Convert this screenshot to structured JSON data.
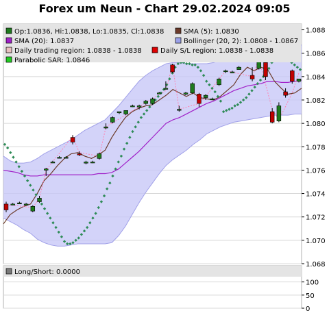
{
  "title": "Forex um Neun - Chart 29.02.2024 09:05",
  "colors": {
    "band_fill": "#c8c8f8",
    "band_line": "#a0a0e8",
    "sma5": "#6b3a2a",
    "sma20": "#a020c8",
    "sar": "#2e8b57",
    "up_candle": "#1e7a1e",
    "down_candle": "#c00000",
    "trade_line": "#ff80b0",
    "legend_bg": "#e4e4e4"
  },
  "legend": [
    {
      "label": "Op:1.0836, Hi:1.0838, Lo:1.0835, Cl:1.0838",
      "color": "#1e7a1e"
    },
    {
      "label": "SMA (5): 1.0830",
      "color": "#6b3a2a"
    },
    {
      "label": "SMA (20): 1.0837",
      "color": "#a020c8"
    },
    {
      "label": "Bollinger (20, 2): 1.0808 - 1.0867",
      "color": "#9aa0e8"
    },
    {
      "label": "Daily trading region: 1.0838 - 1.0838",
      "color": "#e8c0c0"
    },
    {
      "label": "Daily S/L region: 1.0838 - 1.0838",
      "color": "#e00000"
    },
    {
      "label": "Parabolic SAR: 1.0846",
      "color": "#22cc22"
    }
  ],
  "sub_legend": {
    "label": "Long/Short: 0.0000",
    "color": "#7a7a7a"
  },
  "chart_data": [
    {
      "type": "candlestick",
      "title": "Forex um Neun - Chart 29.02.2024 09:05",
      "ylim": [
        1.068,
        1.0885
      ],
      "y_ticks": [
        "1.068",
        "1.070",
        "1.072",
        "1.074",
        "1.076",
        "1.078",
        "1.080",
        "1.082",
        "1.084",
        "1.086",
        "1.088"
      ],
      "candles": [
        {
          "o": 1.0731,
          "h": 1.0733,
          "l": 1.0724,
          "c": 1.0726
        },
        {
          "o": 1.0731,
          "h": 1.0732,
          "l": 1.0731,
          "c": 1.0731
        },
        {
          "o": 1.0732,
          "h": 1.0733,
          "l": 1.0732,
          "c": 1.0732
        },
        {
          "o": 1.0731,
          "h": 1.0732,
          "l": 1.0731,
          "c": 1.0731
        },
        {
          "o": 1.0725,
          "h": 1.073,
          "l": 1.0724,
          "c": 1.0729
        },
        {
          "o": 1.0733,
          "h": 1.0738,
          "l": 1.0732,
          "c": 1.0736
        },
        {
          "o": 1.076,
          "h": 1.0762,
          "l": 1.0755,
          "c": 1.0761
        },
        {
          "o": 1.0767,
          "h": 1.0768,
          "l": 1.0766,
          "c": 1.0767
        },
        {
          "o": 1.0771,
          "h": 1.0772,
          "l": 1.077,
          "c": 1.0771
        },
        {
          "o": 1.0771,
          "h": 1.0772,
          "l": 1.0771,
          "c": 1.0771
        },
        {
          "o": 1.0788,
          "h": 1.079,
          "l": 1.0782,
          "c": 1.0784
        },
        {
          "o": 1.0774,
          "h": 1.0776,
          "l": 1.0772,
          "c": 1.0773
        },
        {
          "o": 1.0766,
          "h": 1.0768,
          "l": 1.0765,
          "c": 1.0767
        },
        {
          "o": 1.0767,
          "h": 1.0768,
          "l": 1.0766,
          "c": 1.0767
        },
        {
          "o": 1.077,
          "h": 1.0775,
          "l": 1.0769,
          "c": 1.0774
        },
        {
          "o": 1.0796,
          "h": 1.08,
          "l": 1.0795,
          "c": 1.0797
        },
        {
          "o": 1.0801,
          "h": 1.0806,
          "l": 1.08,
          "c": 1.0805
        },
        {
          "o": 1.0809,
          "h": 1.081,
          "l": 1.0808,
          "c": 1.081
        },
        {
          "o": 1.0808,
          "h": 1.0811,
          "l": 1.0807,
          "c": 1.0811
        },
        {
          "o": 1.0815,
          "h": 1.0816,
          "l": 1.0814,
          "c": 1.0815
        },
        {
          "o": 1.0814,
          "h": 1.0816,
          "l": 1.0812,
          "c": 1.0815
        },
        {
          "o": 1.0817,
          "h": 1.082,
          "l": 1.0816,
          "c": 1.0819
        },
        {
          "o": 1.0817,
          "h": 1.0822,
          "l": 1.0816,
          "c": 1.0821
        },
        {
          "o": 1.0826,
          "h": 1.0827,
          "l": 1.0825,
          "c": 1.0826
        },
        {
          "o": 1.083,
          "h": 1.0836,
          "l": 1.0829,
          "c": 1.083
        },
        {
          "o": 1.085,
          "h": 1.0851,
          "l": 1.0843,
          "c": 1.0844
        },
        {
          "o": 1.0812,
          "h": 1.0815,
          "l": 1.081,
          "c": 1.0812
        },
        {
          "o": 1.0825,
          "h": 1.0827,
          "l": 1.0824,
          "c": 1.0826
        },
        {
          "o": 1.0826,
          "h": 1.0835,
          "l": 1.0825,
          "c": 1.0834
        },
        {
          "o": 1.0825,
          "h": 1.0826,
          "l": 1.0814,
          "c": 1.0817
        },
        {
          "o": 1.0822,
          "h": 1.0825,
          "l": 1.082,
          "c": 1.0824
        },
        {
          "o": 1.0821,
          "h": 1.0822,
          "l": 1.082,
          "c": 1.0821
        },
        {
          "o": 1.0833,
          "h": 1.0839,
          "l": 1.0832,
          "c": 1.0838
        },
        {
          "o": 1.0845,
          "h": 1.0846,
          "l": 1.0843,
          "c": 1.0845
        },
        {
          "o": 1.0844,
          "h": 1.0845,
          "l": 1.0843,
          "c": 1.0844
        },
        {
          "o": 1.0846,
          "h": 1.0849,
          "l": 1.0846,
          "c": 1.0848
        },
        {
          "o": 1.0854,
          "h": 1.0856,
          "l": 1.0853,
          "c": 1.0855
        },
        {
          "o": 1.0841,
          "h": 1.0848,
          "l": 1.0836,
          "c": 1.0838
        },
        {
          "o": 1.0847,
          "h": 1.0856,
          "l": 1.0846,
          "c": 1.0854
        },
        {
          "o": 1.0852,
          "h": 1.0853,
          "l": 1.0837,
          "c": 1.084
        },
        {
          "o": 1.081,
          "h": 1.0813,
          "l": 1.08,
          "c": 1.0801
        },
        {
          "o": 1.0802,
          "h": 1.0818,
          "l": 1.0801,
          "c": 1.0815
        },
        {
          "o": 1.0827,
          "h": 1.083,
          "l": 1.0822,
          "c": 1.0824
        },
        {
          "o": 1.0845,
          "h": 1.0846,
          "l": 1.0834,
          "c": 1.0836
        },
        {
          "o": 1.0836,
          "h": 1.0838,
          "l": 1.0835,
          "c": 1.0838
        }
      ],
      "sma5": [
        1.0714,
        1.0722,
        1.0726,
        1.0729,
        1.0731,
        1.074,
        1.0751,
        1.0757,
        1.0764,
        1.077,
        1.0774,
        1.0775,
        1.0772,
        1.077,
        1.0773,
        1.0777,
        1.0788,
        1.0797,
        1.0805,
        1.081,
        1.0813,
        1.0815,
        1.0816,
        1.082,
        1.0824,
        1.0829,
        1.0826,
        1.0823,
        1.0826,
        1.0822,
        1.0821,
        1.082,
        1.0823,
        1.0828,
        1.0833,
        1.0842,
        1.0848,
        1.0845,
        1.0848,
        1.0846,
        1.0836,
        1.083,
        1.0825,
        1.0826,
        1.083
      ],
      "sma20": [
        1.076,
        1.0759,
        1.0758,
        1.0756,
        1.0755,
        1.0755,
        1.0756,
        1.0756,
        1.0756,
        1.0756,
        1.0756,
        1.0756,
        1.0756,
        1.0756,
        1.0757,
        1.0757,
        1.0758,
        1.0761,
        1.0766,
        1.0771,
        1.0776,
        1.0782,
        1.0788,
        1.0794,
        1.08,
        1.0803,
        1.0805,
        1.0808,
        1.0811,
        1.0814,
        1.0817,
        1.0819,
        1.0822,
        1.0825,
        1.0828,
        1.083,
        1.0832,
        1.0833,
        1.0834,
        1.0836,
        1.0836,
        1.0835,
        1.0835,
        1.0836,
        1.0837
      ],
      "bollinger_upper": [
        1.0772,
        1.0768,
        1.0766,
        1.0766,
        1.0767,
        1.077,
        1.0774,
        1.0777,
        1.078,
        1.0783,
        1.0786,
        1.079,
        1.0794,
        1.0797,
        1.08,
        1.0803,
        1.0809,
        1.0815,
        1.0822,
        1.0829,
        1.0836,
        1.0841,
        1.0845,
        1.0848,
        1.0851,
        1.0852,
        1.0852,
        1.0851,
        1.0851,
        1.0851,
        1.0851,
        1.0852,
        1.0854,
        1.0856,
        1.0858,
        1.086,
        1.0863,
        1.0864,
        1.0865,
        1.0866,
        1.0866,
        1.0866,
        1.0866,
        1.0867,
        1.0867
      ],
      "bollinger_lower": [
        1.0719,
        1.0716,
        1.0713,
        1.0709,
        1.0706,
        1.0701,
        1.0698,
        1.0696,
        1.0695,
        1.0695,
        1.0696,
        1.0697,
        1.0697,
        1.0697,
        1.0697,
        1.0697,
        1.0698,
        1.0704,
        1.0712,
        1.0722,
        1.0732,
        1.0741,
        1.0749,
        1.0757,
        1.0764,
        1.0769,
        1.0773,
        1.0777,
        1.0782,
        1.0786,
        1.0791,
        1.0794,
        1.0797,
        1.0799,
        1.0801,
        1.0802,
        1.0803,
        1.0804,
        1.0805,
        1.0806,
        1.0807,
        1.0807,
        1.0807,
        1.0808,
        1.0808
      ],
      "sar_points": [
        [
          0,
          1.0782
        ],
        [
          1,
          1.0779
        ],
        [
          2,
          1.0775
        ],
        [
          3,
          1.0771
        ],
        [
          4,
          1.0767
        ],
        [
          5,
          1.0763
        ],
        [
          6,
          1.0759
        ],
        [
          7,
          1.0755
        ],
        [
          8,
          1.0751
        ],
        [
          9,
          1.0747
        ],
        [
          10,
          1.0743
        ],
        [
          11,
          1.0739
        ],
        [
          12,
          1.0735
        ],
        [
          13,
          1.0731
        ],
        [
          14,
          1.0727
        ],
        [
          15,
          1.0723
        ],
        [
          16,
          1.0719
        ],
        [
          17,
          1.0715
        ],
        [
          18,
          1.0711
        ],
        [
          19,
          1.0707
        ],
        [
          20,
          1.0703
        ],
        [
          21,
          1.0699
        ],
        [
          22,
          1.0697
        ],
        [
          23,
          1.0697
        ],
        [
          24,
          1.0698
        ],
        [
          25,
          1.07
        ],
        [
          26,
          1.0702
        ],
        [
          27,
          1.0705
        ],
        [
          28,
          1.0708
        ],
        [
          29,
          1.0711
        ],
        [
          30,
          1.0715
        ],
        [
          31,
          1.0719
        ],
        [
          32,
          1.0723
        ],
        [
          33,
          1.0728
        ],
        [
          34,
          1.0733
        ],
        [
          35,
          1.0738
        ],
        [
          36,
          1.0744
        ],
        [
          37,
          1.0749
        ],
        [
          38,
          1.0755
        ],
        [
          39,
          1.0761
        ],
        [
          40,
          1.0767
        ],
        [
          41,
          1.0772
        ],
        [
          42,
          1.0778
        ],
        [
          43,
          1.0783
        ],
        [
          44,
          1.0788
        ],
        [
          45,
          1.0793
        ],
        [
          46,
          1.0797
        ],
        [
          47,
          1.0801
        ],
        [
          48,
          1.0805
        ],
        [
          49,
          1.0808
        ],
        [
          50,
          1.0811
        ],
        [
          51,
          1.0814
        ],
        [
          52,
          1.0817
        ],
        [
          53,
          1.082
        ],
        [
          54,
          1.0823
        ],
        [
          55,
          1.0826
        ],
        [
          56,
          1.0829
        ],
        [
          57,
          1.0833
        ],
        [
          58,
          1.0838
        ],
        [
          59,
          1.0843
        ],
        [
          60,
          1.0848
        ],
        [
          61,
          1.0851
        ],
        [
          62,
          1.0852
        ],
        [
          63,
          1.0852
        ],
        [
          64,
          1.0851
        ],
        [
          65,
          1.0851
        ],
        [
          66,
          1.085
        ],
        [
          67,
          1.085
        ],
        [
          68,
          1.0848
        ],
        [
          69,
          1.0845
        ],
        [
          70,
          1.0841
        ],
        [
          71,
          1.0836
        ],
        [
          72,
          1.0833
        ],
        [
          73,
          1.083
        ],
        [
          74,
          1.0827
        ],
        [
          75,
          1.0823
        ],
        [
          76,
          1.0819
        ],
        [
          77,
          1.081
        ],
        [
          78,
          1.0811
        ],
        [
          79,
          1.0812
        ],
        [
          80,
          1.0813
        ],
        [
          81,
          1.0815
        ],
        [
          82,
          1.0816
        ],
        [
          83,
          1.0818
        ],
        [
          84,
          1.082
        ],
        [
          85,
          1.0822
        ],
        [
          86,
          1.0825
        ],
        [
          87,
          1.0828
        ],
        [
          88,
          1.0831
        ],
        [
          89,
          1.0834
        ],
        [
          90,
          1.0837
        ],
        [
          91,
          1.084
        ],
        [
          92,
          1.0843
        ],
        [
          93,
          1.0847
        ],
        [
          94,
          1.0852
        ],
        [
          95,
          1.0857
        ],
        [
          96,
          1.086
        ],
        [
          97,
          1.0859
        ],
        [
          98,
          1.0858
        ],
        [
          99,
          1.0856
        ],
        [
          100,
          1.0854
        ],
        [
          101,
          1.0852
        ],
        [
          102,
          1.085
        ],
        [
          103,
          1.0848
        ],
        [
          104,
          1.0846
        ]
      ],
      "sar_x_count": 105,
      "trade_path": [
        [
          0,
          1.073
        ],
        [
          1,
          1.073
        ],
        [
          4,
          1.0728
        ],
        [
          5,
          1.0736
        ],
        [
          6,
          1.076
        ],
        [
          10,
          1.0789
        ],
        [
          11,
          1.0775
        ],
        [
          14,
          1.0772
        ],
        [
          15,
          1.0797
        ],
        [
          24,
          1.0828
        ],
        [
          25,
          1.085
        ],
        [
          26,
          1.0812
        ],
        [
          29,
          1.0817
        ],
        [
          30,
          1.0823
        ],
        [
          33,
          1.0845
        ],
        [
          37,
          1.084
        ],
        [
          38,
          1.0855
        ],
        [
          40,
          1.0812
        ],
        [
          41,
          1.0803
        ],
        [
          43,
          1.0826
        ],
        [
          44,
          1.0843
        ]
      ]
    },
    {
      "type": "line",
      "title": "Long/Short",
      "ylim": [
        0,
        120
      ],
      "y_ticks": [
        "0",
        "50",
        "100"
      ],
      "values": [
        0
      ]
    }
  ]
}
